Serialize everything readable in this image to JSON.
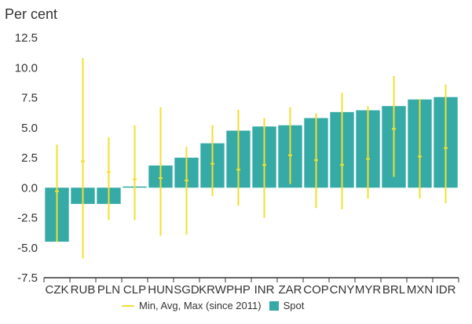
{
  "chart_data": {
    "type": "bar",
    "title": "",
    "unit_label": "Per cent",
    "categories": [
      "CZK",
      "RUB",
      "PLN",
      "CLP",
      "HUN",
      "SGD",
      "KRW",
      "PHP",
      "INR",
      "ZAR",
      "COP",
      "CNY",
      "MYR",
      "BRL",
      "MXN",
      "IDR"
    ],
    "series": [
      {
        "name": "Spot",
        "values": [
          -4.5,
          -1.35,
          -1.35,
          0.1,
          1.85,
          2.5,
          3.7,
          4.75,
          5.1,
          5.2,
          5.8,
          6.3,
          6.45,
          6.8,
          7.35,
          7.55
        ]
      }
    ],
    "ranges": {
      "name": "Min, Avg, Max (since 2011)",
      "min": [
        -4.5,
        -5.9,
        -2.7,
        -2.7,
        -4.0,
        -3.9,
        -0.7,
        -1.5,
        -2.5,
        0.3,
        -1.7,
        -1.8,
        -0.9,
        0.9,
        -0.9,
        -1.3
      ],
      "avg": [
        -0.3,
        2.2,
        1.3,
        0.7,
        0.8,
        0.6,
        2.0,
        1.5,
        1.9,
        2.7,
        2.3,
        1.9,
        2.4,
        4.9,
        2.6,
        3.3
      ],
      "max": [
        3.6,
        10.8,
        4.2,
        5.2,
        6.7,
        3.4,
        5.2,
        6.5,
        5.8,
        6.7,
        6.2,
        7.9,
        6.8,
        9.3,
        7.4,
        8.6
      ]
    },
    "ylim": [
      -7.5,
      12.5
    ],
    "yticks": [
      -7.5,
      -5.0,
      -2.5,
      0.0,
      2.5,
      5.0,
      7.5,
      10.0,
      12.5
    ],
    "ytick_labels": [
      "-7.5",
      "-5.0",
      "-2.5",
      "0.0",
      "2.5",
      "5.0",
      "7.5",
      "10.0",
      "12.5"
    ],
    "grid": false,
    "legend_placement": "bottom",
    "colors": {
      "spot": "#35aaa6",
      "range": "#f2df2f",
      "axis": "#333333",
      "text": "#333333"
    }
  },
  "legend": {
    "range_label": "Min, Avg, Max (since 2011)",
    "spot_label": "Spot"
  }
}
